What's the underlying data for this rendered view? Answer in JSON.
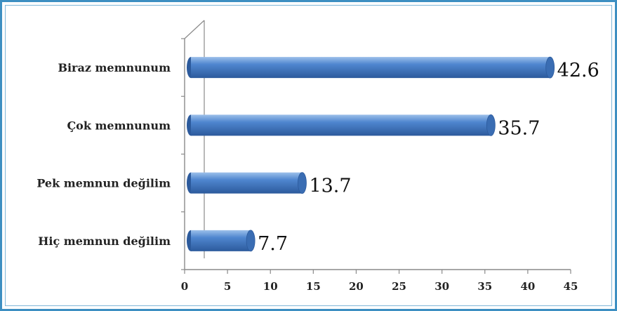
{
  "chart_data": {
    "type": "bar",
    "orientation": "horizontal",
    "categories": [
      "Hiç memnun değilim",
      "Pek memnun değilim",
      "Çok memnunum",
      "Biraz memnunum"
    ],
    "values": [
      7.7,
      13.7,
      35.7,
      42.6
    ],
    "data_labels": [
      "7.7",
      "13.7",
      "35.7",
      "42.6"
    ],
    "xlim": [
      0,
      45
    ],
    "x_ticks": [
      0,
      5,
      10,
      15,
      20,
      25,
      30,
      35,
      40,
      45
    ],
    "title": "",
    "xlabel": "",
    "ylabel": "",
    "grid": false,
    "legend": "none",
    "colors": {
      "bar_light": "#9cc0ea",
      "bar_mid": "#4f86cf",
      "bar_dark": "#2c5a9c",
      "bar_cap": "#3a6db3",
      "axis": "#8a8a8a",
      "frame": "#3d8fc2"
    }
  }
}
